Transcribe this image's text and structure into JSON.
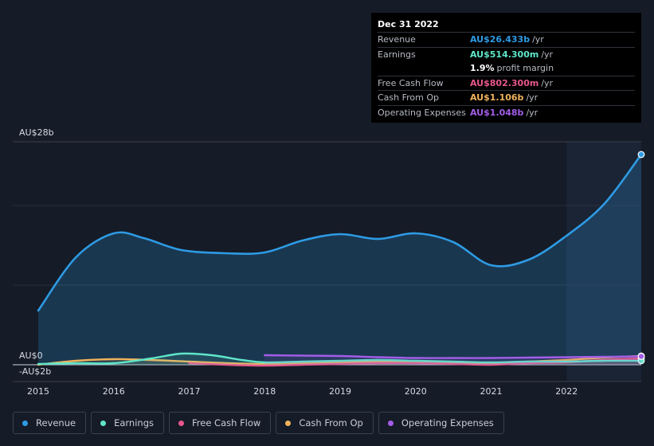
{
  "tooltip": {
    "date": "Dec 31 2022",
    "rows": [
      {
        "label": "Revenue",
        "value": "AU$26.433b",
        "unit": "/yr",
        "color": "#2e9be4"
      },
      {
        "label": "Earnings",
        "value": "AU$514.300m",
        "unit": "/yr",
        "color": "#5fe6c9"
      },
      {
        "label": "",
        "value": "1.9%",
        "unit": "profit margin",
        "color": "#ffffff"
      },
      {
        "label": "Free Cash Flow",
        "value": "AU$802.300m",
        "unit": "/yr",
        "color": "#e8578c"
      },
      {
        "label": "Cash From Op",
        "value": "AU$1.106b",
        "unit": "/yr",
        "color": "#f0b35c"
      },
      {
        "label": "Operating Expenses",
        "value": "AU$1.048b",
        "unit": "/yr",
        "color": "#a35de8"
      }
    ]
  },
  "legend": [
    {
      "label": "Revenue",
      "color": "#2e9be4"
    },
    {
      "label": "Earnings",
      "color": "#5fe6c9"
    },
    {
      "label": "Free Cash Flow",
      "color": "#e8578c"
    },
    {
      "label": "Cash From Op",
      "color": "#f0b35c"
    },
    {
      "label": "Operating Expenses",
      "color": "#a35de8"
    }
  ],
  "chart_data": {
    "type": "area",
    "y_tick_labels": [
      "AU$28b",
      "AU$0",
      "-AU$2b"
    ],
    "y_ticks": [
      28,
      0,
      -2
    ],
    "ylim": [
      -2,
      28
    ],
    "xlim": [
      2015,
      2022.99
    ],
    "x_ticks": [
      2015,
      2016,
      2017,
      2018,
      2019,
      2020,
      2021,
      2022
    ],
    "x_tick_labels": [
      "2015",
      "2016",
      "2017",
      "2018",
      "2019",
      "2020",
      "2021",
      "2022"
    ],
    "highlight_start": 2022.0,
    "series": [
      {
        "name": "Revenue",
        "color": "#2e9be4",
        "x": [
          2015.0,
          2015.5,
          2016.0,
          2016.4,
          2016.9,
          2017.5,
          2018.0,
          2018.5,
          2019.0,
          2019.5,
          2020.0,
          2020.5,
          2021.0,
          2021.5,
          2022.0,
          2022.5,
          2022.99
        ],
        "y": [
          6.8,
          13.5,
          16.5,
          15.9,
          14.4,
          14.0,
          14.1,
          15.6,
          16.4,
          15.8,
          16.5,
          15.4,
          12.5,
          13.2,
          16.2,
          20.2,
          26.4
        ]
      },
      {
        "name": "Earnings",
        "color": "#5fe6c9",
        "x": [
          2015.0,
          2015.5,
          2016.0,
          2016.5,
          2016.9,
          2017.3,
          2017.7,
          2018.0,
          2018.5,
          2019.0,
          2019.5,
          2020.0,
          2020.5,
          2021.0,
          2021.5,
          2022.0,
          2022.5,
          2022.99
        ],
        "y": [
          0.1,
          0.2,
          0.2,
          0.8,
          1.4,
          1.2,
          0.6,
          0.3,
          0.4,
          0.5,
          0.6,
          0.5,
          0.4,
          0.3,
          0.4,
          0.4,
          0.5,
          0.51
        ]
      },
      {
        "name": "Free Cash Flow",
        "color": "#e8578c",
        "x": [
          2017.0,
          2017.5,
          2018.0,
          2018.5,
          2019.0,
          2019.5,
          2020.0,
          2020.5,
          2021.0,
          2021.5,
          2022.0,
          2022.5,
          2022.99
        ],
        "y": [
          0.2,
          0.0,
          -0.1,
          0.0,
          0.1,
          0.2,
          0.2,
          0.1,
          0.0,
          0.2,
          0.3,
          0.6,
          0.8
        ]
      },
      {
        "name": "Cash From Op",
        "color": "#f0b35c",
        "x": [
          2015.0,
          2015.5,
          2016.0,
          2016.5,
          2017.0,
          2017.5,
          2018.0,
          2018.5,
          2019.0,
          2019.5,
          2020.0,
          2020.5,
          2021.0,
          2021.5,
          2022.0,
          2022.5,
          2022.99
        ],
        "y": [
          0.0,
          0.5,
          0.7,
          0.6,
          0.4,
          0.2,
          0.1,
          0.2,
          0.3,
          0.4,
          0.4,
          0.3,
          0.2,
          0.4,
          0.6,
          0.9,
          1.1
        ]
      },
      {
        "name": "Operating Expenses",
        "color": "#a35de8",
        "x": [
          2018.0,
          2018.5,
          2019.0,
          2019.5,
          2020.0,
          2020.5,
          2021.0,
          2021.5,
          2022.0,
          2022.5,
          2022.99
        ],
        "y": [
          1.2,
          1.15,
          1.1,
          0.95,
          0.85,
          0.85,
          0.85,
          0.9,
          0.95,
          1.0,
          1.05
        ]
      }
    ]
  }
}
